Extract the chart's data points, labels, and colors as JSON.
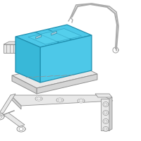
{
  "bg_color": "#ffffff",
  "border_color": "#cccccc",
  "battery_fill": "#4dc8e8",
  "battery_stroke": "#2090b0",
  "battery_dark": "#1a7a96",
  "part_fill": "#e8e8e8",
  "part_stroke": "#909090",
  "part_dark": "#787878",
  "tube_color": "#aaaaaa",
  "fig_width": 2.0,
  "fig_height": 2.0,
  "dpi": 100
}
